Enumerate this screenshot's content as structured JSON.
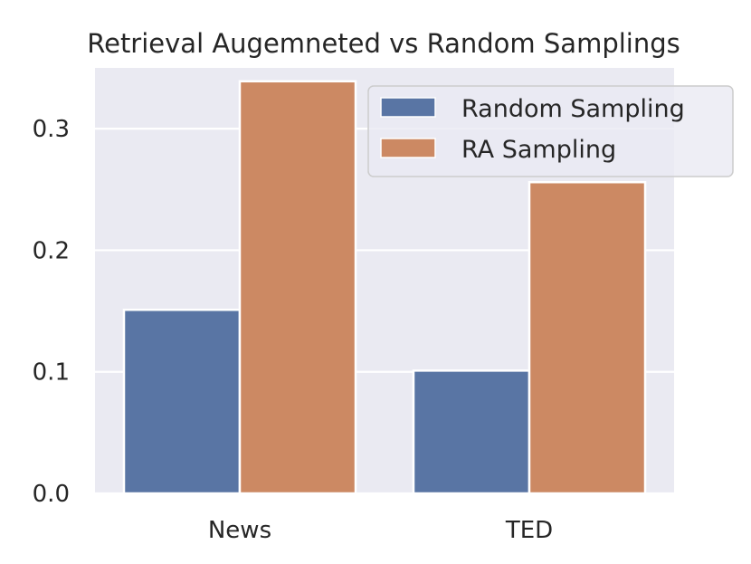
{
  "chart_data": {
    "type": "bar",
    "title": "Retrieval Augemneted vs Random Samplings",
    "xlabel": "",
    "ylabel": "",
    "categories": [
      "News",
      "TED"
    ],
    "series": [
      {
        "name": "Random Sampling",
        "values": [
          0.151,
          0.101
        ],
        "color": "#5975a4"
      },
      {
        "name": "RA Sampling",
        "values": [
          0.339,
          0.256
        ],
        "color": "#cc8963"
      }
    ],
    "ylim": [
      0,
      0.35
    ],
    "yticks": [
      "0.0",
      "0.1",
      "0.2",
      "0.3"
    ],
    "grid": true,
    "legend_position": "top-right",
    "background_color": "#eaeaf2"
  }
}
